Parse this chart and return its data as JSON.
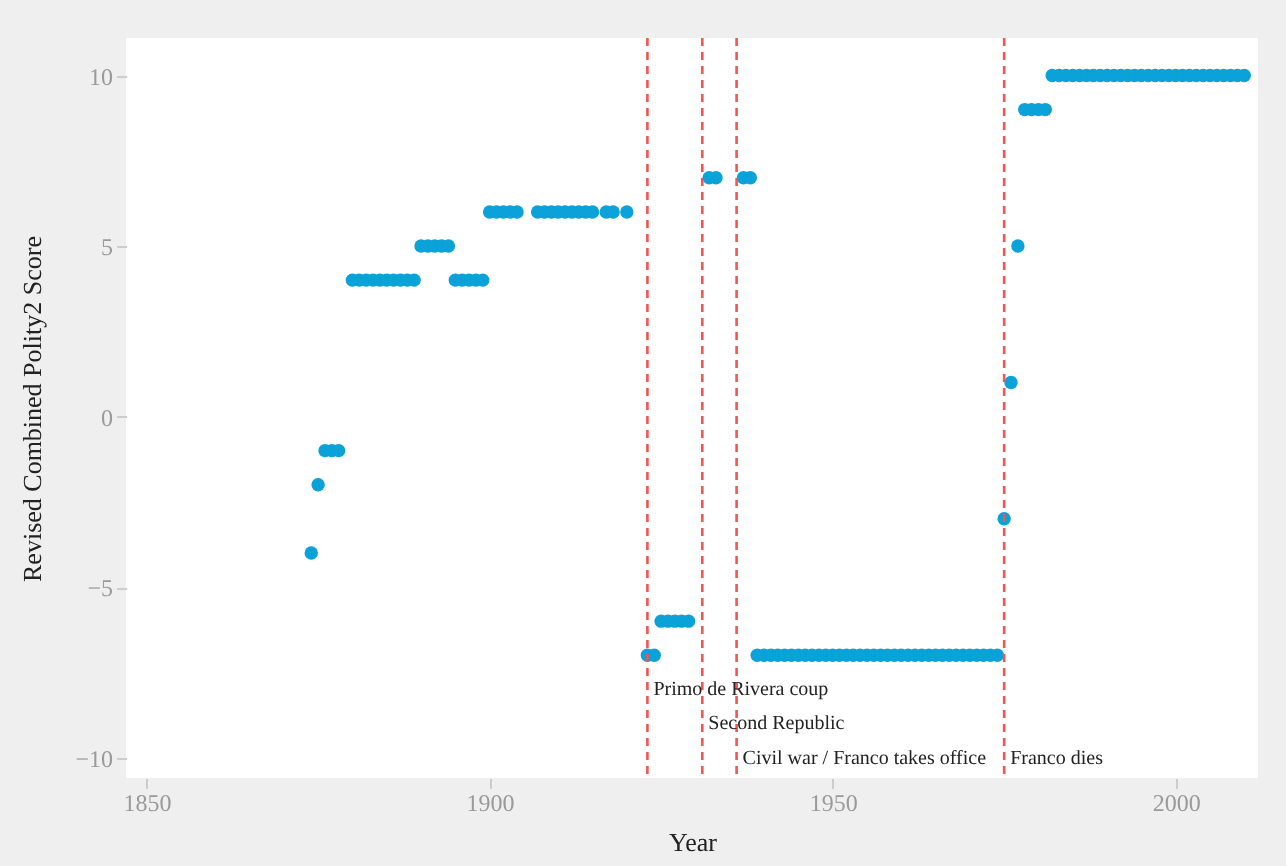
{
  "chart_data": {
    "type": "scatter",
    "xlabel": "Year",
    "ylabel": "Revised Combined Polity2 Score",
    "x": [
      1874,
      1875,
      1876,
      1877,
      1878,
      1880,
      1881,
      1882,
      1883,
      1884,
      1885,
      1886,
      1887,
      1888,
      1889,
      1890,
      1891,
      1892,
      1893,
      1894,
      1895,
      1896,
      1897,
      1898,
      1899,
      1900,
      1901,
      1902,
      1903,
      1904,
      1907,
      1908,
      1909,
      1910,
      1911,
      1912,
      1913,
      1914,
      1915,
      1917,
      1918,
      1920,
      1923,
      1924,
      1925,
      1926,
      1927,
      1928,
      1929,
      1932,
      1933,
      1937,
      1938,
      1939,
      1940,
      1941,
      1942,
      1943,
      1944,
      1945,
      1946,
      1947,
      1948,
      1949,
      1950,
      1951,
      1952,
      1953,
      1954,
      1955,
      1956,
      1957,
      1958,
      1959,
      1960,
      1961,
      1962,
      1963,
      1964,
      1965,
      1966,
      1967,
      1968,
      1969,
      1970,
      1971,
      1972,
      1973,
      1974,
      1975,
      1976,
      1977,
      1978,
      1979,
      1980,
      1981,
      1982,
      1983,
      1984,
      1985,
      1986,
      1987,
      1988,
      1989,
      1990,
      1991,
      1992,
      1993,
      1994,
      1995,
      1996,
      1997,
      1998,
      1999,
      2000,
      2001,
      2002,
      2003,
      2004,
      2005,
      2006,
      2007,
      2008,
      2009,
      2010
    ],
    "series": [
      {
        "color": "#0ba1d9",
        "values": [
          -4,
          -2,
          -1,
          -1,
          -1,
          4,
          4,
          4,
          4,
          4,
          4,
          4,
          4,
          4,
          4,
          5,
          5,
          5,
          5,
          5,
          4,
          4,
          4,
          4,
          4,
          6,
          6,
          6,
          6,
          6,
          6,
          6,
          6,
          6,
          6,
          6,
          6,
          6,
          6,
          6,
          6,
          6,
          -7,
          -7,
          -6,
          -6,
          -6,
          -6,
          -6,
          7,
          7,
          7,
          7,
          -7,
          -7,
          -7,
          -7,
          -7,
          -7,
          -7,
          -7,
          -7,
          -7,
          -7,
          -7,
          -7,
          -7,
          -7,
          -7,
          -7,
          -7,
          -7,
          -7,
          -7,
          -7,
          -7,
          -7,
          -7,
          -7,
          -7,
          -7,
          -7,
          -7,
          -7,
          -7,
          -7,
          -7,
          -7,
          -7,
          -3,
          1,
          5,
          9,
          9,
          9,
          9,
          10,
          10,
          10,
          10,
          10,
          10,
          10,
          10,
          10,
          10,
          10,
          10,
          10,
          10,
          10,
          10,
          10,
          10,
          10,
          10,
          10,
          10,
          10,
          10,
          10,
          10,
          10,
          10,
          10
        ]
      }
    ],
    "marker": "circle",
    "xlim": [
      1847,
      2012
    ],
    "xticks": [
      1850,
      1900,
      1950,
      2000
    ],
    "ylim": [
      -10.6,
      11.1
    ],
    "yticks": [
      -10,
      -5,
      0,
      5,
      10
    ],
    "ref_lines": [
      {
        "axis": "x",
        "value": 1923,
        "color": "#f2564f",
        "line_style": "dashed"
      },
      {
        "axis": "x",
        "value": 1931,
        "color": "#f2564f",
        "line_style": "dashed"
      },
      {
        "axis": "x",
        "value": 1936,
        "color": "#f2564f",
        "line_style": "dashed"
      },
      {
        "axis": "x",
        "value": 1975,
        "color": "#f2564f",
        "line_style": "dashed"
      }
    ],
    "annotations": [
      {
        "text": "Primo de Rivera coup",
        "x": 1923,
        "y": -8
      },
      {
        "text": "Second Republic",
        "x": 1931,
        "y": -9
      },
      {
        "text": "Civil war / Franco takes office",
        "x": 1936,
        "y": -10
      },
      {
        "text": "Franco dies",
        "x": 1975,
        "y": -10
      }
    ]
  }
}
